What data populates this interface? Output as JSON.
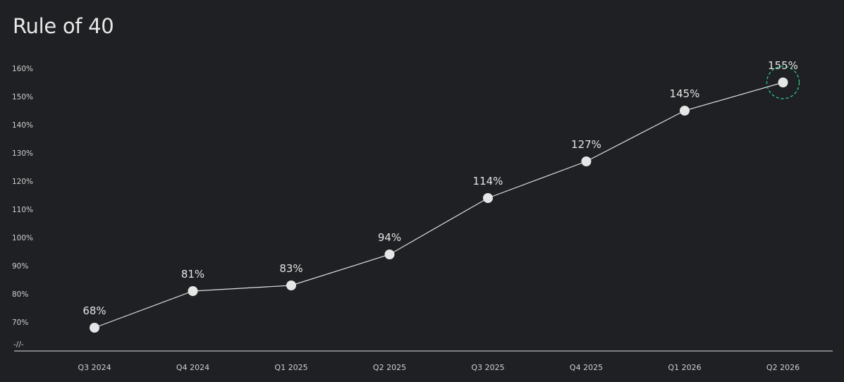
{
  "chart_data": {
    "type": "line",
    "title": "Rule of 40",
    "categories": [
      "Q3 2024",
      "Q4 2024",
      "Q1 2025",
      "Q2 2025",
      "Q3 2025",
      "Q4 2025",
      "Q1 2026",
      "Q2 2026"
    ],
    "series": [
      {
        "values": [
          68,
          81,
          83,
          94,
          114,
          127,
          145,
          155
        ],
        "labels": [
          "68%",
          "81%",
          "83%",
          "94%",
          "114%",
          "127%",
          "145%",
          "155%"
        ]
      }
    ],
    "y_ticks": [
      70,
      80,
      90,
      100,
      110,
      120,
      130,
      140,
      150,
      160
    ],
    "y_tick_labels": [
      "70%",
      "80%",
      "90%",
      "100%",
      "110%",
      "120%",
      "130%",
      "140%",
      "150%",
      "160%"
    ],
    "axis_break_symbol": "-//-",
    "ylim": [
      60,
      165
    ],
    "grid": false,
    "highlight_index": 7,
    "colors": {
      "background": "#1e2023",
      "line": "#e0e0e0",
      "marker": "#e6e6e6",
      "highlight_ring": "#2fc98a",
      "axis": "#e0e0e0"
    }
  }
}
